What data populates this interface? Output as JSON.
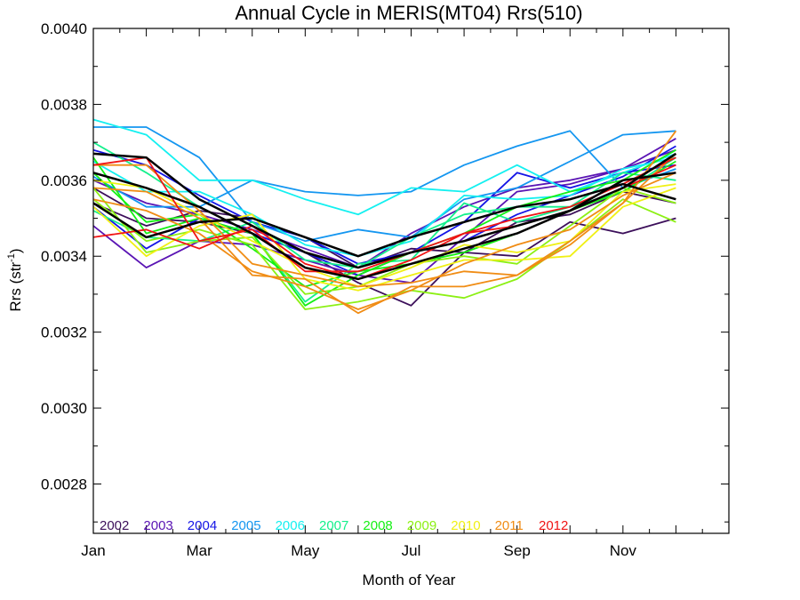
{
  "chart_data": {
    "type": "line",
    "title": "Annual Cycle in MERIS(MT04) Rrs(510)",
    "xlabel": "Month of Year",
    "ylabel": "Rrs (str",
    "ylabel_sup": "-1",
    "ylabel_close": ")",
    "x": [
      1,
      2,
      3,
      4,
      5,
      6,
      7,
      8,
      9,
      10,
      11,
      12
    ],
    "xlim": [
      1,
      13
    ],
    "ylim": [
      0.00267,
      0.004
    ],
    "x_ticks": [
      {
        "v": 1,
        "label": "Jan"
      },
      {
        "v": 3,
        "label": "Mar"
      },
      {
        "v": 5,
        "label": "May"
      },
      {
        "v": 7,
        "label": "Jul"
      },
      {
        "v": 9,
        "label": "Sep"
      },
      {
        "v": 11,
        "label": "Nov"
      }
    ],
    "y_ticks": [
      {
        "v": 0.0028,
        "label": "0.0028"
      },
      {
        "v": 0.003,
        "label": "0.0030"
      },
      {
        "v": 0.0032,
        "label": "0.0032"
      },
      {
        "v": 0.0034,
        "label": "0.0034"
      },
      {
        "v": 0.0036,
        "label": "0.0036"
      },
      {
        "v": 0.0038,
        "label": "0.0038"
      },
      {
        "v": 0.004,
        "label": "0.0040"
      }
    ],
    "y_minor_step": 0.0001,
    "grid": false,
    "legend_position": "bottom-left inside plot",
    "legend": [
      {
        "name": "2002",
        "color": "#3c0f5a"
      },
      {
        "name": "2003",
        "color": "#5a14b4"
      },
      {
        "name": "2004",
        "color": "#1414e6"
      },
      {
        "name": "2005",
        "color": "#1496f0"
      },
      {
        "name": "2006",
        "color": "#14f0f0"
      },
      {
        "name": "2007",
        "color": "#14f08c"
      },
      {
        "name": "2008",
        "color": "#14f014"
      },
      {
        "name": "2009",
        "color": "#8cf014"
      },
      {
        "name": "2010",
        "color": "#f0f014"
      },
      {
        "name": "2011",
        "color": "#f08c14"
      },
      {
        "name": "2012",
        "color": "#f01414"
      }
    ],
    "series": [
      {
        "color": "#3c0f5a",
        "values": [
          0.00354,
          0.00348,
          0.00352,
          0.0035,
          0.00345,
          0.00337,
          0.00342,
          0.00341,
          0.0034,
          0.00349,
          0.00346,
          0.0035
        ]
      },
      {
        "color": "#3c0f5a",
        "values": [
          0.00358,
          0.0035,
          0.00349,
          0.00346,
          0.00341,
          0.00333,
          0.00327,
          0.00341,
          0.00349,
          0.00351,
          0.00357,
          0.00354
        ]
      },
      {
        "color": "#5a14b4",
        "values": [
          0.00348,
          0.00337,
          0.00344,
          0.00343,
          0.00339,
          0.00335,
          0.00333,
          0.00345,
          0.00357,
          0.00359,
          0.00363,
          0.00368
        ]
      },
      {
        "color": "#5a14b4",
        "values": [
          0.0036,
          0.00354,
          0.00351,
          0.00347,
          0.00342,
          0.00337,
          0.00346,
          0.00353,
          0.00358,
          0.0036,
          0.00363,
          0.00371
        ]
      },
      {
        "color": "#1414e6",
        "values": [
          0.00368,
          0.00364,
          0.00356,
          0.00349,
          0.00345,
          0.00338,
          0.00341,
          0.00344,
          0.00351,
          0.00356,
          0.00361,
          0.00369
        ]
      },
      {
        "color": "#1414e6",
        "values": [
          0.00353,
          0.00342,
          0.0035,
          0.00346,
          0.00341,
          0.00335,
          0.00341,
          0.00349,
          0.00362,
          0.00358,
          0.00362,
          0.00364
        ]
      },
      {
        "color": "#1496f0",
        "values": [
          0.00374,
          0.00374,
          0.00366,
          0.00349,
          0.00344,
          0.00347,
          0.00345,
          0.00355,
          0.00358,
          0.00365,
          0.00372,
          0.00373
        ]
      },
      {
        "color": "#1496f0",
        "values": [
          0.00361,
          0.00353,
          0.00353,
          0.0036,
          0.00357,
          0.00356,
          0.00357,
          0.00364,
          0.00369,
          0.00373,
          0.00358,
          0.00363
        ]
      },
      {
        "color": "#14f0f0",
        "values": [
          0.00376,
          0.00372,
          0.0036,
          0.0036,
          0.00355,
          0.00351,
          0.00358,
          0.00357,
          0.00364,
          0.00357,
          0.00362,
          0.00367
        ]
      },
      {
        "color": "#14f0f0",
        "values": [
          0.00365,
          0.00357,
          0.00357,
          0.00351,
          0.00343,
          0.0034,
          0.00344,
          0.00356,
          0.00355,
          0.00356,
          0.00363,
          0.00366
        ]
      },
      {
        "color": "#14f08c",
        "values": [
          0.0037,
          0.00362,
          0.00353,
          0.00346,
          0.00328,
          0.00338,
          0.00339,
          0.00354,
          0.00349,
          0.00353,
          0.00357,
          0.00366
        ]
      },
      {
        "color": "#14f08c",
        "values": [
          0.00352,
          0.00345,
          0.00344,
          0.00349,
          0.00339,
          0.00337,
          0.00345,
          0.00351,
          0.00353,
          0.00353,
          0.00362,
          0.0036
        ]
      },
      {
        "color": "#14f014",
        "values": [
          0.00366,
          0.00346,
          0.0035,
          0.00346,
          0.00327,
          0.00335,
          0.00341,
          0.00346,
          0.00353,
          0.00357,
          0.0036,
          0.00368
        ]
      },
      {
        "color": "#14f014",
        "values": [
          0.00362,
          0.00349,
          0.00351,
          0.00342,
          0.00332,
          0.00336,
          0.00338,
          0.00341,
          0.00346,
          0.00352,
          0.00357,
          0.00365
        ]
      },
      {
        "color": "#8cf014",
        "values": [
          0.00355,
          0.00344,
          0.00347,
          0.00343,
          0.00326,
          0.00328,
          0.00331,
          0.00329,
          0.00334,
          0.00344,
          0.00355,
          0.00349
        ]
      },
      {
        "color": "#8cf014",
        "values": [
          0.00358,
          0.00341,
          0.00344,
          0.00345,
          0.0033,
          0.00332,
          0.00338,
          0.0034,
          0.00338,
          0.00348,
          0.00358,
          0.00354
        ]
      },
      {
        "color": "#f0f014",
        "values": [
          0.00353,
          0.0034,
          0.00348,
          0.00351,
          0.00334,
          0.00331,
          0.00335,
          0.00339,
          0.00339,
          0.0034,
          0.00353,
          0.00358
        ]
      },
      {
        "color": "#f0f014",
        "values": [
          0.0036,
          0.00358,
          0.00351,
          0.00344,
          0.00337,
          0.00332,
          0.00337,
          0.00343,
          0.00341,
          0.00344,
          0.00357,
          0.00359
        ]
      },
      {
        "color": "#f08c14",
        "values": [
          0.00358,
          0.00357,
          0.0035,
          0.00335,
          0.00334,
          0.00325,
          0.00332,
          0.00332,
          0.00335,
          0.00343,
          0.00354,
          0.00373
        ]
      },
      {
        "color": "#f08c14",
        "values": [
          0.00364,
          0.00364,
          0.00352,
          0.00338,
          0.00335,
          0.00332,
          0.00333,
          0.00336,
          0.00335,
          0.00344,
          0.00354,
          0.00367
        ]
      },
      {
        "color": "#f08c14",
        "values": [
          0.00355,
          0.00352,
          0.00346,
          0.00336,
          0.00332,
          0.00326,
          0.00331,
          0.00338,
          0.00343,
          0.00347,
          0.00356,
          0.00362
        ]
      },
      {
        "color": "#f01414",
        "values": [
          0.00345,
          0.00347,
          0.00342,
          0.00348,
          0.00338,
          0.00334,
          0.00339,
          0.00346,
          0.0035,
          0.00353,
          0.00359,
          0.00366
        ]
      },
      {
        "color": "#f01414",
        "values": [
          0.00364,
          0.00366,
          0.00344,
          0.00347,
          0.00336,
          0.00336,
          0.00341,
          0.00346,
          0.00348,
          0.00352,
          0.00358,
          0.00364
        ]
      },
      {
        "color": "#000000",
        "width": 2.5,
        "values": [
          0.00362,
          0.00358,
          0.00353,
          0.00346,
          0.00337,
          0.00334,
          0.00338,
          0.00342,
          0.00346,
          0.00352,
          0.0036,
          0.00362
        ]
      },
      {
        "color": "#000000",
        "width": 2.5,
        "values": [
          0.00367,
          0.00366,
          0.00355,
          0.00348,
          0.00341,
          0.00337,
          0.00341,
          0.00344,
          0.00348,
          0.00352,
          0.00358,
          0.00367
        ]
      },
      {
        "color": "#000000",
        "width": 2.5,
        "values": [
          0.00354,
          0.00345,
          0.00349,
          0.0035,
          0.00345,
          0.0034,
          0.00345,
          0.00349,
          0.00353,
          0.00355,
          0.00359,
          0.00355
        ]
      }
    ]
  }
}
